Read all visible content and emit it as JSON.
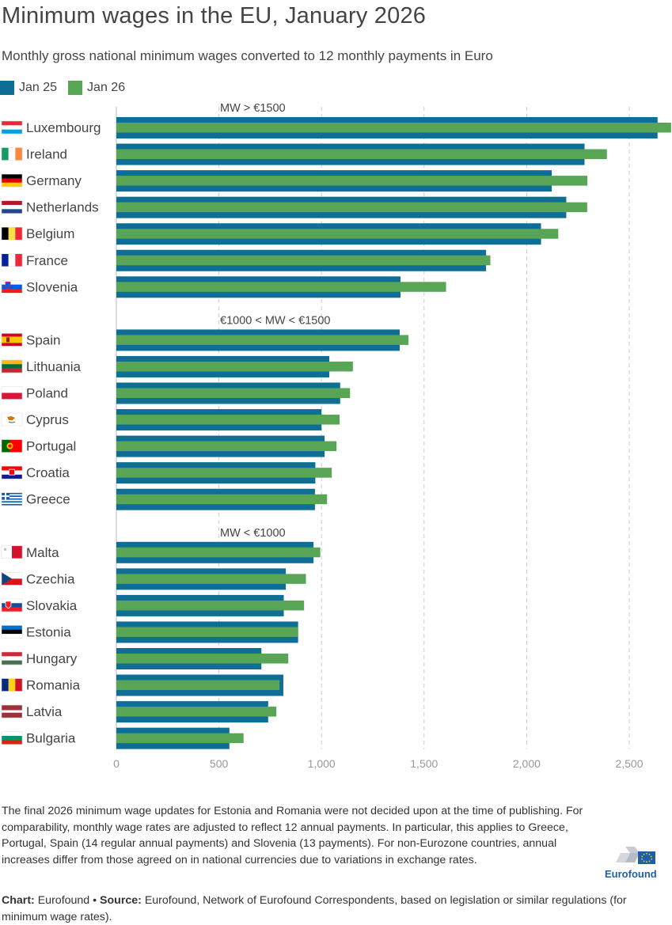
{
  "title": "Minimum wages in the EU, January 2026",
  "subtitle": "Monthly gross national minimum wages converted to 12 monthly payments in Euro",
  "colors": {
    "jan25": "#0f6e96",
    "jan26": "#58a556",
    "grid": "#cccccc",
    "axis": "#999999"
  },
  "notes": "The final 2026 minimum wage updates for Estonia and Romania were not decided upon at the time of publishing. For comparability, monthly wage rates are adjusted to reflect 12 annual payments. In particular, this applies to Greece, Portugal, Spain (14 regular annual payments) and Slovenia (13 payments). For non-Eurozone countries, annual increases differ from those agreed on in national currencies due to variations in exchange rates.",
  "credits": {
    "chart_label": "Chart:",
    "chart_value": " Eurofound • ",
    "source_label": "Source:",
    "source_value": " Eurofound, Network of Eurofound Correspondents, based on legislation or similar regulations (for minimum wage rates)."
  },
  "logo_text": "Eurofound",
  "chart_data": {
    "type": "bar",
    "orientation": "horizontal",
    "xlim": [
      0,
      2700
    ],
    "ticks": [
      0,
      500,
      1000,
      1500,
      2000,
      2500
    ],
    "tick_labels": [
      "0",
      "500",
      "1,000",
      "1,500",
      "2,000",
      "2,500"
    ],
    "grid": true,
    "legend_position": "top-left",
    "series": [
      {
        "name": "Jan 25",
        "color": "#0f6e96"
      },
      {
        "name": "Jan 26",
        "color": "#58a556"
      }
    ],
    "groups": [
      {
        "label": "MW > €1500",
        "countries": [
          {
            "name": "Luxembourg",
            "flag": "lu-flag",
            "jan25": 2638,
            "jan26": 2704
          },
          {
            "name": "Ireland",
            "flag": "ie-flag",
            "jan25": 2282,
            "jan26": 2391
          },
          {
            "name": "Germany",
            "flag": "de-flag",
            "jan25": 2122,
            "jan26": 2296
          },
          {
            "name": "Netherlands",
            "flag": "nl-flag",
            "jan25": 2193,
            "jan26": 2295
          },
          {
            "name": "Belgium",
            "flag": "be-flag",
            "jan25": 2070,
            "jan26": 2154
          },
          {
            "name": "France",
            "flag": "fr-flag",
            "jan25": 1802,
            "jan26": 1823
          },
          {
            "name": "Slovenia",
            "flag": "si-flag",
            "jan25": 1385,
            "jan26": 1607
          }
        ]
      },
      {
        "label": "€1000 < MW < €1500",
        "countries": [
          {
            "name": "Spain",
            "flag": "es-flag",
            "jan25": 1381,
            "jan26": 1424
          },
          {
            "name": "Lithuania",
            "flag": "lt-flag",
            "jan25": 1038,
            "jan26": 1153
          },
          {
            "name": "Poland",
            "flag": "pl-flag",
            "jan25": 1091,
            "jan26": 1139
          },
          {
            "name": "Cyprus",
            "flag": "cy-flag",
            "jan25": 1000,
            "jan26": 1088
          },
          {
            "name": "Portugal",
            "flag": "pt-flag",
            "jan25": 1015,
            "jan26": 1073
          },
          {
            "name": "Croatia",
            "flag": "hr-flag",
            "jan25": 970,
            "jan26": 1050
          },
          {
            "name": "Greece",
            "flag": "gr-flag",
            "jan25": 968,
            "jan26": 1027
          }
        ]
      },
      {
        "label": "MW < €1000",
        "countries": [
          {
            "name": "Malta",
            "flag": "mt-flag",
            "jan25": 961,
            "jan26": 994
          },
          {
            "name": "Czechia",
            "flag": "cz-flag",
            "jan25": 826,
            "jan26": 924
          },
          {
            "name": "Slovakia",
            "flag": "sk-flag",
            "jan25": 816,
            "jan26": 915
          },
          {
            "name": "Estonia",
            "flag": "ee-flag",
            "jan25": 886,
            "jan26": 886
          },
          {
            "name": "Hungary",
            "flag": "hu-flag",
            "jan25": 707,
            "jan26": 838
          },
          {
            "name": "Romania",
            "flag": "ro-flag",
            "jan25": 814,
            "jan26": 795
          },
          {
            "name": "Latvia",
            "flag": "lv-flag",
            "jan25": 740,
            "jan26": 780
          },
          {
            "name": "Bulgaria",
            "flag": "bg-flag",
            "jan25": 551,
            "jan26": 620
          }
        ]
      }
    ]
  }
}
